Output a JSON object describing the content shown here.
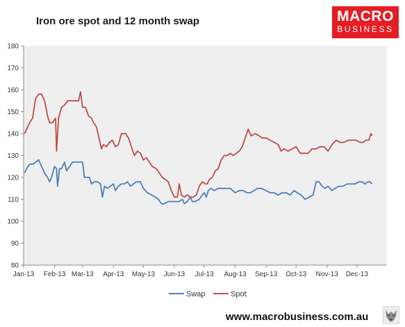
{
  "header": {
    "title": "Iron ore spot and 12 month swap"
  },
  "logo": {
    "line1": "MACRO",
    "line2": "BUSINESS"
  },
  "footer": {
    "url": "www.macrobusiness.com.au",
    "mascot_icon": "wolf-icon"
  },
  "colors": {
    "plot_background": "#efefef",
    "swap": "#4a7ebb",
    "spot": "#be4b48",
    "brand": "#e31e24"
  },
  "chart_data": {
    "type": "line",
    "title": "",
    "xlabel": "",
    "ylabel": "",
    "ylim": [
      80,
      180
    ],
    "yticks": [
      80,
      90,
      100,
      110,
      120,
      130,
      140,
      150,
      160,
      170,
      180
    ],
    "xlim": [
      "2013-01-01",
      "2013-12-31"
    ],
    "xticks": [
      {
        "date": "2013-01-01",
        "label": "Jan-13"
      },
      {
        "date": "2013-02-01",
        "label": "Feb-13"
      },
      {
        "date": "2013-03-01",
        "label": "Mar-13"
      },
      {
        "date": "2013-04-01",
        "label": "Apr-13"
      },
      {
        "date": "2013-05-01",
        "label": "May-13"
      },
      {
        "date": "2013-06-01",
        "label": "Jun-13"
      },
      {
        "date": "2013-07-01",
        "label": "Jul-13"
      },
      {
        "date": "2013-08-01",
        "label": "Aug-13"
      },
      {
        "date": "2013-09-01",
        "label": "Sep-13"
      },
      {
        "date": "2013-10-01",
        "label": "Oct-13"
      },
      {
        "date": "2013-11-01",
        "label": "Nov-13"
      },
      {
        "date": "2013-12-01",
        "label": "Dec-13"
      }
    ],
    "grid": false,
    "legend": "bottom",
    "series": [
      {
        "name": "Swap",
        "color": "#4a7ebb",
        "points": [
          [
            "2013-01-02",
            122
          ],
          [
            "2013-01-04",
            124
          ],
          [
            "2013-01-07",
            126
          ],
          [
            "2013-01-10",
            126
          ],
          [
            "2013-01-13",
            127
          ],
          [
            "2013-01-16",
            128
          ],
          [
            "2013-01-19",
            125
          ],
          [
            "2013-01-22",
            122
          ],
          [
            "2013-01-25",
            120
          ],
          [
            "2013-01-27",
            118
          ],
          [
            "2013-01-29",
            120
          ],
          [
            "2013-02-01",
            125
          ],
          [
            "2013-02-03",
            124
          ],
          [
            "2013-02-04",
            116
          ],
          [
            "2013-02-06",
            124
          ],
          [
            "2013-02-08",
            124
          ],
          [
            "2013-02-11",
            127
          ],
          [
            "2013-02-13",
            123
          ],
          [
            "2013-02-16",
            125
          ],
          [
            "2013-02-19",
            127
          ],
          [
            "2013-02-22",
            127
          ],
          [
            "2013-02-26",
            127
          ],
          [
            "2013-03-01",
            127
          ],
          [
            "2013-03-03",
            120
          ],
          [
            "2013-03-06",
            120
          ],
          [
            "2013-03-08",
            120
          ],
          [
            "2013-03-10",
            117
          ],
          [
            "2013-03-13",
            118
          ],
          [
            "2013-03-16",
            118
          ],
          [
            "2013-03-19",
            117
          ],
          [
            "2013-03-21",
            111
          ],
          [
            "2013-03-23",
            116
          ],
          [
            "2013-03-26",
            115
          ],
          [
            "2013-03-29",
            116
          ],
          [
            "2013-04-01",
            117
          ],
          [
            "2013-04-03",
            114
          ],
          [
            "2013-04-06",
            116
          ],
          [
            "2013-04-09",
            117
          ],
          [
            "2013-04-12",
            117
          ],
          [
            "2013-04-15",
            118
          ],
          [
            "2013-04-18",
            116
          ],
          [
            "2013-04-21",
            117
          ],
          [
            "2013-04-24",
            118
          ],
          [
            "2013-04-28",
            118
          ],
          [
            "2013-05-01",
            115
          ],
          [
            "2013-05-05",
            113
          ],
          [
            "2013-05-09",
            112
          ],
          [
            "2013-05-13",
            111
          ],
          [
            "2013-05-16",
            110
          ],
          [
            "2013-05-19",
            108
          ],
          [
            "2013-05-22",
            108
          ],
          [
            "2013-05-26",
            109
          ],
          [
            "2013-05-30",
            109
          ],
          [
            "2013-06-03",
            109
          ],
          [
            "2013-06-06",
            109
          ],
          [
            "2013-06-09",
            110
          ],
          [
            "2013-06-11",
            108
          ],
          [
            "2013-06-14",
            109
          ],
          [
            "2013-06-17",
            111
          ],
          [
            "2013-06-19",
            109
          ],
          [
            "2013-06-22",
            109
          ],
          [
            "2013-06-26",
            110
          ],
          [
            "2013-06-29",
            112
          ],
          [
            "2013-07-01",
            113
          ],
          [
            "2013-07-03",
            111
          ],
          [
            "2013-07-05",
            114
          ],
          [
            "2013-07-08",
            115
          ],
          [
            "2013-07-11",
            114
          ],
          [
            "2013-07-15",
            115
          ],
          [
            "2013-07-19",
            115
          ],
          [
            "2013-07-23",
            115
          ],
          [
            "2013-07-27",
            115
          ],
          [
            "2013-08-01",
            113
          ],
          [
            "2013-08-05",
            114
          ],
          [
            "2013-08-09",
            114
          ],
          [
            "2013-08-13",
            113
          ],
          [
            "2013-08-16",
            113
          ],
          [
            "2013-08-20",
            114
          ],
          [
            "2013-08-23",
            115
          ],
          [
            "2013-08-27",
            115
          ],
          [
            "2013-09-01",
            114
          ],
          [
            "2013-09-05",
            113
          ],
          [
            "2013-09-09",
            113
          ],
          [
            "2013-09-13",
            112
          ],
          [
            "2013-09-17",
            113
          ],
          [
            "2013-09-21",
            113
          ],
          [
            "2013-09-25",
            112
          ],
          [
            "2013-09-29",
            114
          ],
          [
            "2013-10-02",
            113
          ],
          [
            "2013-10-06",
            112
          ],
          [
            "2013-10-10",
            110
          ],
          [
            "2013-10-14",
            111
          ],
          [
            "2013-10-18",
            112
          ],
          [
            "2013-10-21",
            118
          ],
          [
            "2013-10-24",
            118
          ],
          [
            "2013-10-27",
            116
          ],
          [
            "2013-10-30",
            115
          ],
          [
            "2013-11-02",
            116
          ],
          [
            "2013-11-06",
            114
          ],
          [
            "2013-11-09",
            115
          ],
          [
            "2013-11-13",
            116
          ],
          [
            "2013-11-17",
            116
          ],
          [
            "2013-11-21",
            117
          ],
          [
            "2013-11-25",
            117
          ],
          [
            "2013-11-29",
            117
          ],
          [
            "2013-12-03",
            118
          ],
          [
            "2013-12-06",
            118
          ],
          [
            "2013-12-09",
            117
          ],
          [
            "2013-12-12",
            118
          ],
          [
            "2013-12-14",
            118
          ],
          [
            "2013-12-16",
            117
          ]
        ]
      },
      {
        "name": "Spot",
        "color": "#be4b48",
        "points": [
          [
            "2013-01-02",
            140
          ],
          [
            "2013-01-04",
            142
          ],
          [
            "2013-01-07",
            145
          ],
          [
            "2013-01-10",
            147
          ],
          [
            "2013-01-13",
            156
          ],
          [
            "2013-01-16",
            158
          ],
          [
            "2013-01-19",
            158
          ],
          [
            "2013-01-22",
            155
          ],
          [
            "2013-01-25",
            148
          ],
          [
            "2013-01-27",
            145
          ],
          [
            "2013-01-30",
            145
          ],
          [
            "2013-02-02",
            147
          ],
          [
            "2013-02-03",
            132
          ],
          [
            "2013-02-05",
            147
          ],
          [
            "2013-02-08",
            152
          ],
          [
            "2013-02-11",
            153
          ],
          [
            "2013-02-14",
            155
          ],
          [
            "2013-02-17",
            155
          ],
          [
            "2013-02-20",
            155
          ],
          [
            "2013-02-25",
            155
          ],
          [
            "2013-02-27",
            159
          ],
          [
            "2013-03-01",
            152
          ],
          [
            "2013-03-04",
            152
          ],
          [
            "2013-03-07",
            148
          ],
          [
            "2013-03-10",
            147
          ],
          [
            "2013-03-12",
            145
          ],
          [
            "2013-03-15",
            143
          ],
          [
            "2013-03-17",
            139
          ],
          [
            "2013-03-20",
            133
          ],
          [
            "2013-03-22",
            135
          ],
          [
            "2013-03-25",
            134
          ],
          [
            "2013-03-28",
            136
          ],
          [
            "2013-03-31",
            137
          ],
          [
            "2013-04-03",
            134
          ],
          [
            "2013-04-06",
            135
          ],
          [
            "2013-04-09",
            140
          ],
          [
            "2013-04-13",
            140
          ],
          [
            "2013-04-16",
            138
          ],
          [
            "2013-04-19",
            134
          ],
          [
            "2013-04-22",
            130
          ],
          [
            "2013-04-25",
            132
          ],
          [
            "2013-04-28",
            131
          ],
          [
            "2013-05-01",
            128
          ],
          [
            "2013-05-04",
            129
          ],
          [
            "2013-05-07",
            127
          ],
          [
            "2013-05-10",
            125
          ],
          [
            "2013-05-14",
            124
          ],
          [
            "2013-05-17",
            122
          ],
          [
            "2013-05-20",
            120
          ],
          [
            "2013-05-23",
            119
          ],
          [
            "2013-05-26",
            118
          ],
          [
            "2013-05-29",
            114
          ],
          [
            "2013-06-01",
            111
          ],
          [
            "2013-06-04",
            111
          ],
          [
            "2013-06-06",
            117
          ],
          [
            "2013-06-08",
            112
          ],
          [
            "2013-06-11",
            111
          ],
          [
            "2013-06-14",
            112
          ],
          [
            "2013-06-17",
            111
          ],
          [
            "2013-06-20",
            111
          ],
          [
            "2013-06-23",
            112
          ],
          [
            "2013-06-26",
            116
          ],
          [
            "2013-06-29",
            118
          ],
          [
            "2013-07-02",
            117
          ],
          [
            "2013-07-04",
            117
          ],
          [
            "2013-07-06",
            119
          ],
          [
            "2013-07-09",
            120
          ],
          [
            "2013-07-12",
            123
          ],
          [
            "2013-07-15",
            124
          ],
          [
            "2013-07-18",
            128
          ],
          [
            "2013-07-21",
            130
          ],
          [
            "2013-07-24",
            130
          ],
          [
            "2013-07-27",
            131
          ],
          [
            "2013-07-30",
            130
          ],
          [
            "2013-08-02",
            131
          ],
          [
            "2013-08-05",
            132
          ],
          [
            "2013-08-08",
            134
          ],
          [
            "2013-08-11",
            138
          ],
          [
            "2013-08-14",
            142
          ],
          [
            "2013-08-17",
            139
          ],
          [
            "2013-08-21",
            140
          ],
          [
            "2013-08-25",
            139
          ],
          [
            "2013-08-28",
            138
          ],
          [
            "2013-09-01",
            138
          ],
          [
            "2013-09-05",
            137
          ],
          [
            "2013-09-09",
            136
          ],
          [
            "2013-09-13",
            135
          ],
          [
            "2013-09-16",
            132
          ],
          [
            "2013-09-19",
            133
          ],
          [
            "2013-09-23",
            132
          ],
          [
            "2013-09-27",
            133
          ],
          [
            "2013-10-01",
            134
          ],
          [
            "2013-10-05",
            131
          ],
          [
            "2013-10-09",
            131
          ],
          [
            "2013-10-13",
            131
          ],
          [
            "2013-10-17",
            133
          ],
          [
            "2013-10-21",
            133
          ],
          [
            "2013-10-25",
            134
          ],
          [
            "2013-10-29",
            134
          ],
          [
            "2013-11-02",
            132
          ],
          [
            "2013-11-06",
            135
          ],
          [
            "2013-11-10",
            137
          ],
          [
            "2013-11-14",
            136
          ],
          [
            "2013-11-18",
            136
          ],
          [
            "2013-11-22",
            137
          ],
          [
            "2013-11-26",
            137
          ],
          [
            "2013-11-30",
            137
          ],
          [
            "2013-12-04",
            136
          ],
          [
            "2013-12-07",
            136
          ],
          [
            "2013-12-10",
            137
          ],
          [
            "2013-12-13",
            137
          ],
          [
            "2013-12-15",
            140
          ],
          [
            "2013-12-16",
            139
          ]
        ]
      }
    ]
  }
}
